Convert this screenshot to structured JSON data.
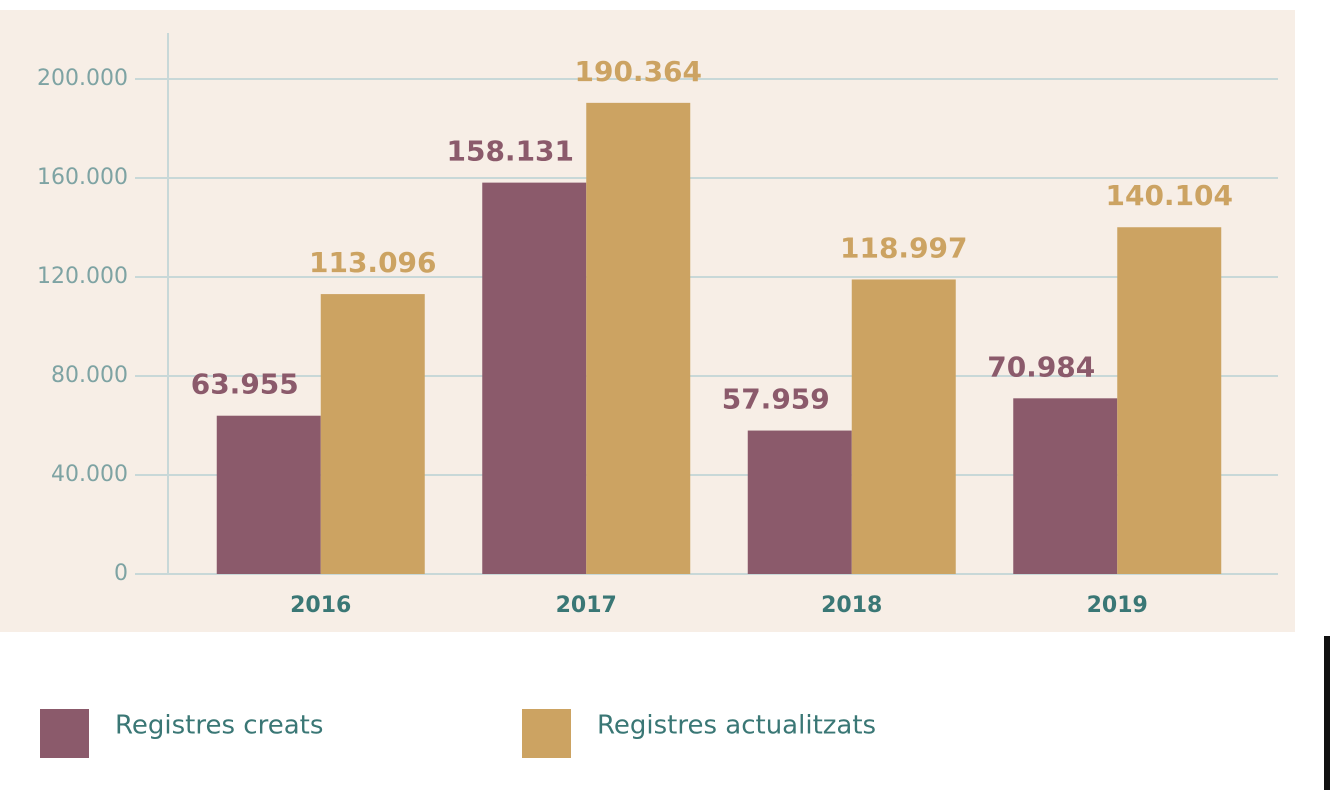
{
  "chart_data": {
    "type": "bar",
    "categories": [
      "2016",
      "2017",
      "2018",
      "2019"
    ],
    "series": [
      {
        "name": "Registres creats",
        "color": "#8b5a6b",
        "values": [
          63955,
          158131,
          57959,
          70984
        ],
        "value_labels": [
          "63.955",
          "158.131",
          "57.959",
          "70.984"
        ]
      },
      {
        "name": "Registres actualitzats",
        "color": "#cca362",
        "values": [
          113096,
          190364,
          118997,
          140104
        ],
        "value_labels": [
          "113.096",
          "190.364",
          "118.997",
          "140.104"
        ]
      }
    ],
    "ylim": [
      0,
      200000
    ],
    "yticks": [
      0,
      {
        "value": 40000,
        "label": "40.000"
      },
      {
        "value": 80000,
        "label": "80.000"
      },
      {
        "value": 120000,
        "label": "120.000"
      },
      {
        "value": 160000,
        "label": "160.000"
      },
      {
        "value": 200000,
        "label": "200.000"
      }
    ],
    "grid": true,
    "legend": "bottom"
  }
}
